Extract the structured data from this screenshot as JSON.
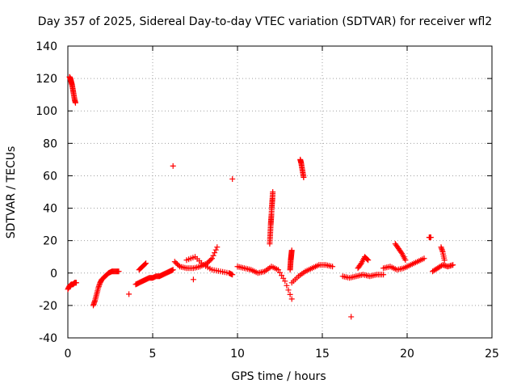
{
  "chart_data": {
    "type": "scatter",
    "title": "Day 357 of 2025, Sidereal Day-to-day VTEC variation (SDTVAR) for receiver wfl2",
    "xlabel": "GPS time / hours",
    "ylabel": "SDTVAR / TECUs",
    "xlim": [
      0,
      25
    ],
    "ylim": [
      -40,
      140
    ],
    "xticks": [
      0,
      5,
      10,
      15,
      20,
      25
    ],
    "yticks": [
      -40,
      -20,
      0,
      20,
      40,
      60,
      80,
      100,
      120,
      140
    ],
    "grid": true,
    "marker": "plus",
    "color": "#ff0000",
    "segments": [
      {
        "x": [
          0.0,
          0.1,
          0.2,
          0.3,
          0.4,
          0.5
        ],
        "y": [
          -10,
          -8,
          -7,
          -7,
          -6,
          -6
        ]
      },
      {
        "x": [
          0.1,
          0.15,
          0.2,
          0.25,
          0.3,
          0.35,
          0.4,
          0.45
        ],
        "y": [
          121,
          120,
          118,
          116,
          113,
          110,
          107,
          105
        ]
      },
      {
        "x": [
          1.5,
          1.6,
          1.7,
          1.8,
          1.9,
          2.0,
          2.2,
          2.4,
          2.6,
          2.8,
          3.0
        ],
        "y": [
          -20,
          -17,
          -13,
          -9,
          -6,
          -4,
          -2,
          0,
          1,
          1,
          1
        ]
      },
      {
        "x": [
          4.0,
          4.2,
          4.4,
          4.6,
          4.8,
          5.0,
          5.2,
          5.4,
          5.6,
          5.8,
          6.0,
          6.2
        ],
        "y": [
          -7,
          -6,
          -5,
          -4,
          -3,
          -3,
          -2,
          -2,
          -1,
          0,
          1,
          2
        ]
      },
      {
        "x": [
          4.2,
          4.4,
          4.6
        ],
        "y": [
          2,
          4,
          6
        ]
      },
      {
        "x": [
          6.3,
          6.6,
          7.0,
          7.4,
          7.8,
          8.2,
          8.5,
          8.8
        ],
        "y": [
          7,
          4,
          3,
          3,
          4,
          6,
          9,
          16
        ]
      },
      {
        "x": [
          7.0,
          7.5,
          8.0,
          8.5,
          9.0,
          9.5,
          9.7
        ],
        "y": [
          8,
          10,
          5,
          2,
          1,
          0,
          -1
        ]
      },
      {
        "x": [
          10.0,
          10.4,
          10.8,
          11.2,
          11.6,
          12.0,
          12.4,
          12.8,
          13.2
        ],
        "y": [
          4,
          3,
          2,
          0,
          1,
          4,
          2,
          -5,
          -16
        ]
      },
      {
        "x": [
          11.9,
          11.92,
          11.94,
          11.96,
          11.98,
          12.0,
          12.02,
          12.04,
          12.06,
          12.08
        ],
        "y": [
          18,
          22,
          26,
          30,
          33,
          36,
          40,
          43,
          46,
          50
        ]
      },
      {
        "x": [
          13.1,
          13.12,
          13.14,
          13.16,
          13.18,
          13.2
        ],
        "y": [
          2,
          5,
          8,
          10,
          12,
          14
        ]
      },
      {
        "x": [
          13.2,
          13.6,
          14.0,
          14.4,
          14.8,
          15.2,
          15.6
        ],
        "y": [
          -6,
          -2,
          1,
          3,
          5,
          5,
          4
        ]
      },
      {
        "x": [
          13.7,
          13.75,
          13.8,
          13.85,
          13.9
        ],
        "y": [
          70,
          68,
          65,
          62,
          59
        ]
      },
      {
        "x": [
          16.2,
          16.6,
          17.0,
          17.4,
          17.8,
          18.2,
          18.6
        ],
        "y": [
          -2,
          -3,
          -2,
          -1,
          -2,
          -1,
          -1
        ]
      },
      {
        "x": [
          17.1,
          17.3,
          17.5,
          17.7
        ],
        "y": [
          3,
          6,
          10,
          8
        ]
      },
      {
        "x": [
          18.6,
          19.0,
          19.4,
          19.8,
          20.2,
          20.6,
          21.0
        ],
        "y": [
          3,
          4,
          2,
          3,
          5,
          7,
          9
        ]
      },
      {
        "x": [
          19.3,
          19.5,
          19.7,
          19.9
        ],
        "y": [
          18,
          15,
          12,
          8
        ]
      },
      {
        "x": [
          21.3,
          21.4
        ],
        "y": [
          22,
          22
        ]
      },
      {
        "x": [
          21.5,
          21.8,
          22.1,
          22.4,
          22.7
        ],
        "y": [
          1,
          3,
          5,
          4,
          5
        ]
      },
      {
        "x": [
          22.0,
          22.1,
          22.2
        ],
        "y": [
          16,
          13,
          8
        ]
      }
    ],
    "outliers": {
      "x": [
        3.6,
        6.2,
        7.4,
        9.7,
        16.7
      ],
      "y": [
        -13,
        66,
        -4,
        58,
        -27
      ]
    }
  }
}
